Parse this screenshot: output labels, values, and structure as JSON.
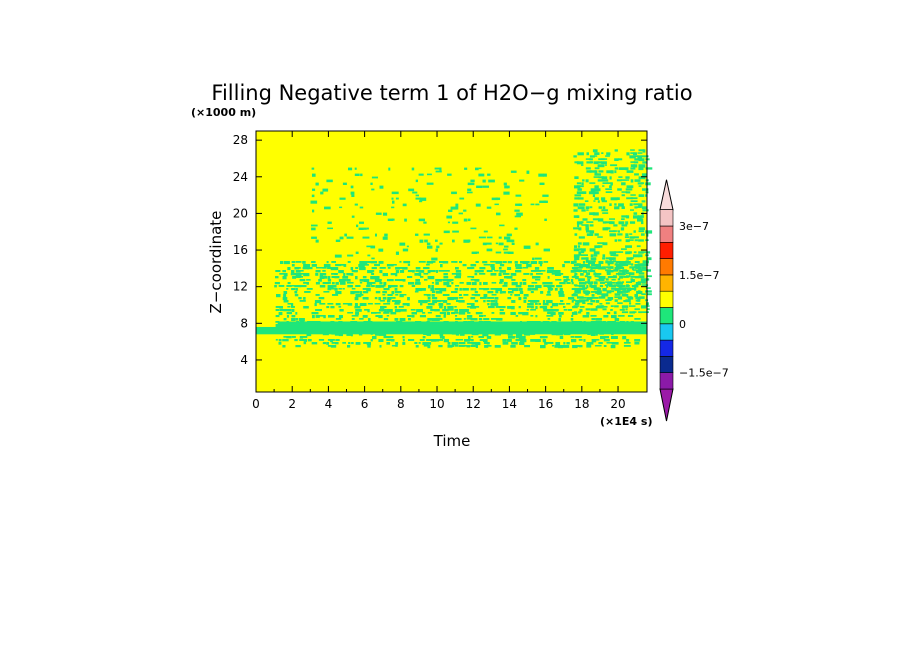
{
  "chart_data": {
    "type": "heatmap",
    "title": "Filling Negative term 1 of H2O−g mixing ratio",
    "ylabel": "Z−coordinate",
    "xlabel": "Time",
    "y_unit": "(×1000 m)",
    "x_unit": "(×1E4 s)",
    "xlim": [
      0,
      21.6
    ],
    "ylim": [
      0.5,
      29
    ],
    "x_ticks": [
      "0",
      "2",
      "4",
      "6",
      "8",
      "10",
      "12",
      "14",
      "16",
      "18",
      "20"
    ],
    "y_ticks": [
      "4",
      "8",
      "12",
      "16",
      "20",
      "24",
      "28"
    ],
    "colorbar": {
      "labels": [
        {
          "text": "3e−7",
          "level": 10
        },
        {
          "text": "1.5e−7",
          "level": 7
        },
        {
          "text": "0",
          "level": 4
        },
        {
          "text": "−1.5e−7",
          "level": 1
        }
      ],
      "colors": [
        "#8b1aa8",
        "#0a2a8f",
        "#1428e6",
        "#19c8f0",
        "#1ee67a",
        "#ffff00",
        "#ffb400",
        "#ff7a00",
        "#ff1e00",
        "#f08080",
        "#f4c4c4"
      ],
      "over_color": "#f8dcdc",
      "under_color": "#9b1aa8"
    },
    "background_value_color": "#ffff00",
    "feature_color": "#1ee67a",
    "features": [
      {
        "kind": "band",
        "x": [
          0,
          21.6
        ],
        "y": [
          6.8,
          7.6
        ]
      },
      {
        "kind": "band",
        "x": [
          1.2,
          21.6
        ],
        "y": [
          7.3,
          8.2
        ]
      },
      {
        "kind": "patches",
        "x": [
          1,
          21.2
        ],
        "y": [
          5.3,
          14.8
        ],
        "density": 0.42
      },
      {
        "kind": "patches",
        "x": [
          3,
          16
        ],
        "y": [
          15,
          25
        ],
        "density": 0.1
      },
      {
        "kind": "patches",
        "x": [
          17.5,
          21.6
        ],
        "y": [
          9,
          27
        ],
        "density": 0.4
      }
    ]
  }
}
